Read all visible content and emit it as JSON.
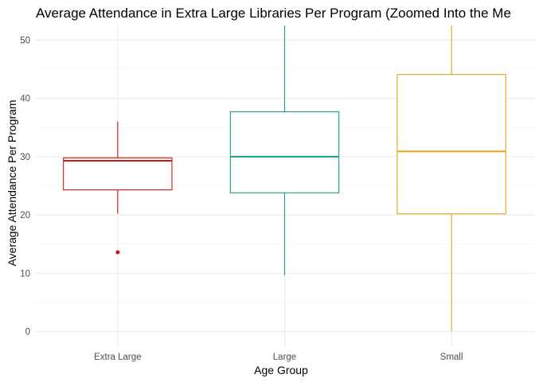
{
  "chart_data": {
    "type": "boxplot",
    "title": "Average Attendance in Extra Large Libraries Per Program (Zoomed Into the Me",
    "xlabel": "Age Group",
    "ylabel": "Average Attendance Per Program",
    "ylim": [
      -2.5,
      52.5
    ],
    "yticks": [
      0,
      10,
      20,
      30,
      40,
      50
    ],
    "grid": true,
    "categories": [
      "Extra Large",
      "Large",
      "Small"
    ],
    "boxes": [
      {
        "category": "Extra Large",
        "color": "#cc1414",
        "whisker_low": 20.2,
        "q1": 24.3,
        "median": 29.3,
        "q3": 29.8,
        "whisker_high": 36.0,
        "outliers": [
          13.6
        ]
      },
      {
        "category": "Large",
        "color": "#1a9a8a",
        "whisker_low": 9.7,
        "q1": 23.8,
        "median": 30.0,
        "q3": 37.7,
        "whisker_high": 52.5,
        "outliers": []
      },
      {
        "category": "Small",
        "color": "#e6a619",
        "whisker_low": 0.1,
        "q1": 20.2,
        "median": 30.9,
        "q3": 44.1,
        "whisker_high": 52.5,
        "outliers": []
      }
    ]
  }
}
